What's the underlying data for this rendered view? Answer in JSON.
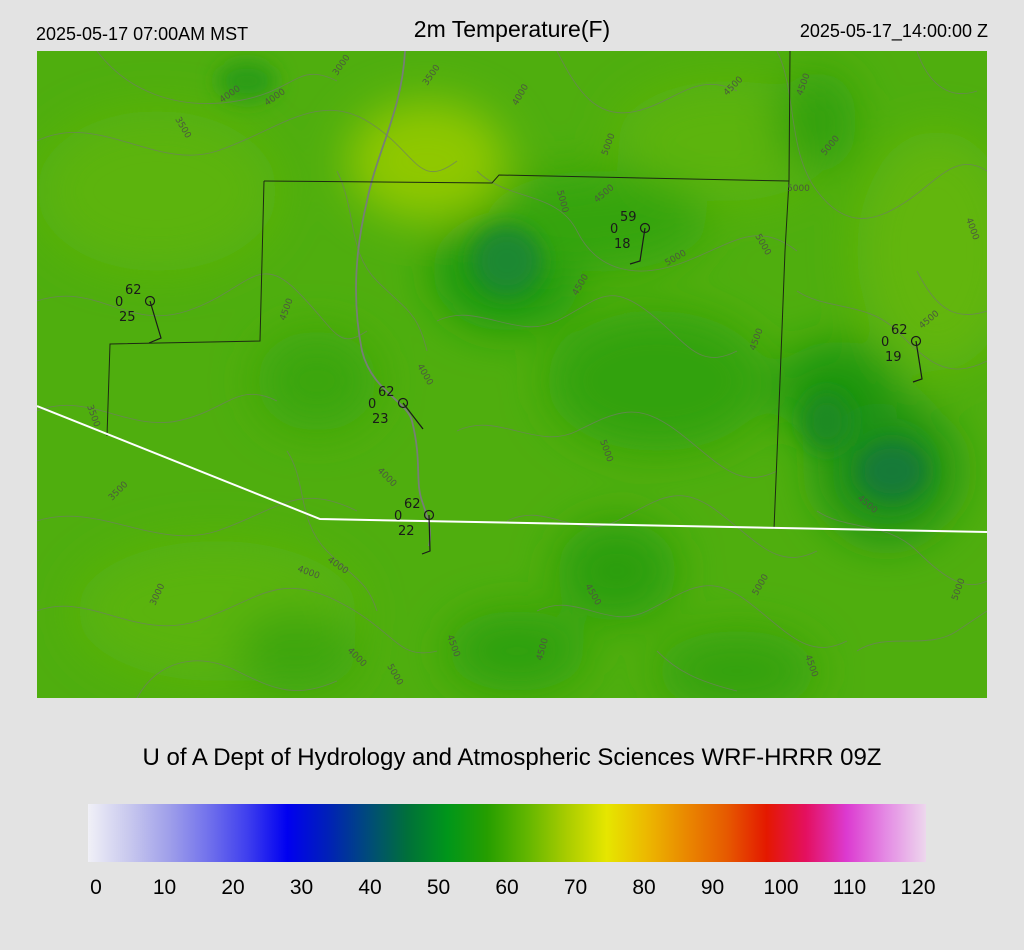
{
  "header": {
    "local_time": "2025-05-17 07:00AM MST",
    "title": "2m Temperature(F)",
    "valid_time": "2025-05-17_14:00:00 Z"
  },
  "map": {
    "field": "2m Temperature",
    "units": "F",
    "contour_labels": [
      "4000",
      "4000",
      "3500",
      "3000",
      "3500",
      "4000",
      "4500",
      "4500",
      "5000",
      "5000",
      "5000",
      "5000",
      "4000",
      "5000",
      "5000",
      "4500",
      "4500",
      "3500",
      "4500",
      "4000",
      "5000",
      "4500",
      "3500",
      "4000",
      "5000",
      "4500",
      "3000",
      "4500",
      "4000",
      "4500",
      "5000",
      "4500",
      "5000",
      "4500",
      "4500",
      "4000",
      "4000"
    ],
    "stations": [
      {
        "temp": "62",
        "wind": "0",
        "dew": "25"
      },
      {
        "temp": "59",
        "wind": "0",
        "dew": "18"
      },
      {
        "temp": "62",
        "wind": "0",
        "dew": "23"
      },
      {
        "temp": "62",
        "wind": "0",
        "dew": "22"
      },
      {
        "temp": "62",
        "wind": "0",
        "dew": "19"
      }
    ]
  },
  "credit": "U of A Dept of Hydrology and Atmospheric Sciences WRF-HRRR 09Z",
  "colorbar": {
    "ticks": [
      "0",
      "10",
      "20",
      "30",
      "40",
      "50",
      "60",
      "70",
      "80",
      "90",
      "100",
      "110",
      "120"
    ],
    "colors": [
      "#f0f0f7",
      "#c9c9ee",
      "#a1a1ea",
      "#7272ec",
      "#3f3fee",
      "#0000f0",
      "#0020b8",
      "#004a7c",
      "#00703a",
      "#00961a",
      "#259e00",
      "#62b600",
      "#a8cc00",
      "#e6e600",
      "#ecb800",
      "#ea8800",
      "#e65a00",
      "#e41800",
      "#e41060",
      "#dc3ad0",
      "#e48ae4",
      "#edd7ed"
    ]
  }
}
